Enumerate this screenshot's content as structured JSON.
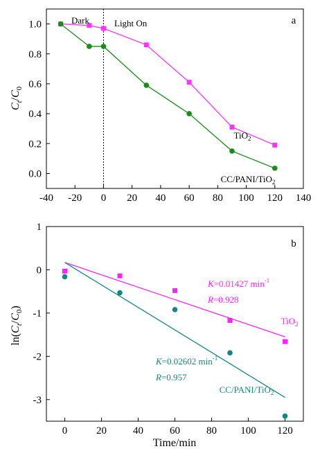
{
  "chart_data": [
    {
      "type": "line",
      "panel_label": "a",
      "ylabel": {
        "main": "C",
        "sub_t": "t",
        "slash": "/",
        "main2": "C",
        "sub_0": "0"
      },
      "xlim": [
        -40,
        140
      ],
      "ylim": [
        -0.1,
        1.1
      ],
      "x_ticks": [
        -40,
        -20,
        0,
        20,
        40,
        60,
        80,
        100,
        120,
        140
      ],
      "y_ticks": [
        "0.0",
        "0.2",
        "0.4",
        "0.6",
        "0.8",
        "1.0"
      ],
      "annotations": {
        "dark": "Dark",
        "light_on": "Light On"
      },
      "divider_x": 0,
      "series": [
        {
          "name_main": "TiO",
          "name_sub": "2",
          "color": "#ff33ff",
          "marker": "square",
          "x": [
            -30,
            -10,
            0,
            30,
            60,
            90,
            120
          ],
          "y": [
            1.0,
            0.99,
            0.97,
            0.86,
            0.61,
            0.31,
            0.19
          ]
        },
        {
          "name_main": "CC/PANI/TiO",
          "name_sub": "2",
          "color": "#1a8c1a",
          "marker": "circle",
          "x": [
            -30,
            -10,
            0,
            30,
            60,
            90,
            120
          ],
          "y": [
            1.0,
            0.85,
            0.85,
            0.59,
            0.4,
            0.15,
            0.035
          ]
        }
      ]
    },
    {
      "type": "scatter",
      "panel_label": "b",
      "xlabel": "Time/min",
      "ylabel": {
        "pre": "ln(",
        "main": "C",
        "sub_t": "t",
        "slash": "/",
        "main2": "C",
        "sub_0": "0",
        "post": ")"
      },
      "xlim": [
        -10,
        130
      ],
      "ylim": [
        -3.5,
        1.0
      ],
      "x_ticks": [
        0,
        20,
        40,
        60,
        80,
        100,
        120
      ],
      "y_ticks": [
        "-3",
        "-2",
        "-1",
        "0",
        "1"
      ],
      "series": [
        {
          "name_main": "TiO",
          "name_sub": "2",
          "color": "#ff22ff",
          "marker": "square",
          "x": [
            0,
            30,
            60,
            90,
            120
          ],
          "y": [
            -0.03,
            -0.14,
            -0.48,
            -1.17,
            -1.66
          ],
          "fit": {
            "x": [
              0,
              120
            ],
            "y": [
              0.17,
              -1.55
            ]
          },
          "k_label": "K",
          "k_value": "=0.01427 min",
          "k_exp": "-1",
          "r_label": "R",
          "r_value": "=0.928"
        },
        {
          "name_main": "CC/PANI/TiO",
          "name_sub": "2",
          "color": "#138585",
          "marker": "circle",
          "x": [
            0,
            30,
            60,
            90,
            120
          ],
          "y": [
            -0.16,
            -0.53,
            -0.92,
            -1.92,
            -3.38
          ],
          "fit": {
            "x": [
              0,
              120
            ],
            "y": [
              0.17,
              -2.95
            ]
          },
          "k_label": "K",
          "k_value": "=0.02602 min",
          "k_exp": "-1",
          "r_label": "R",
          "r_value": "=0.957"
        }
      ]
    }
  ]
}
